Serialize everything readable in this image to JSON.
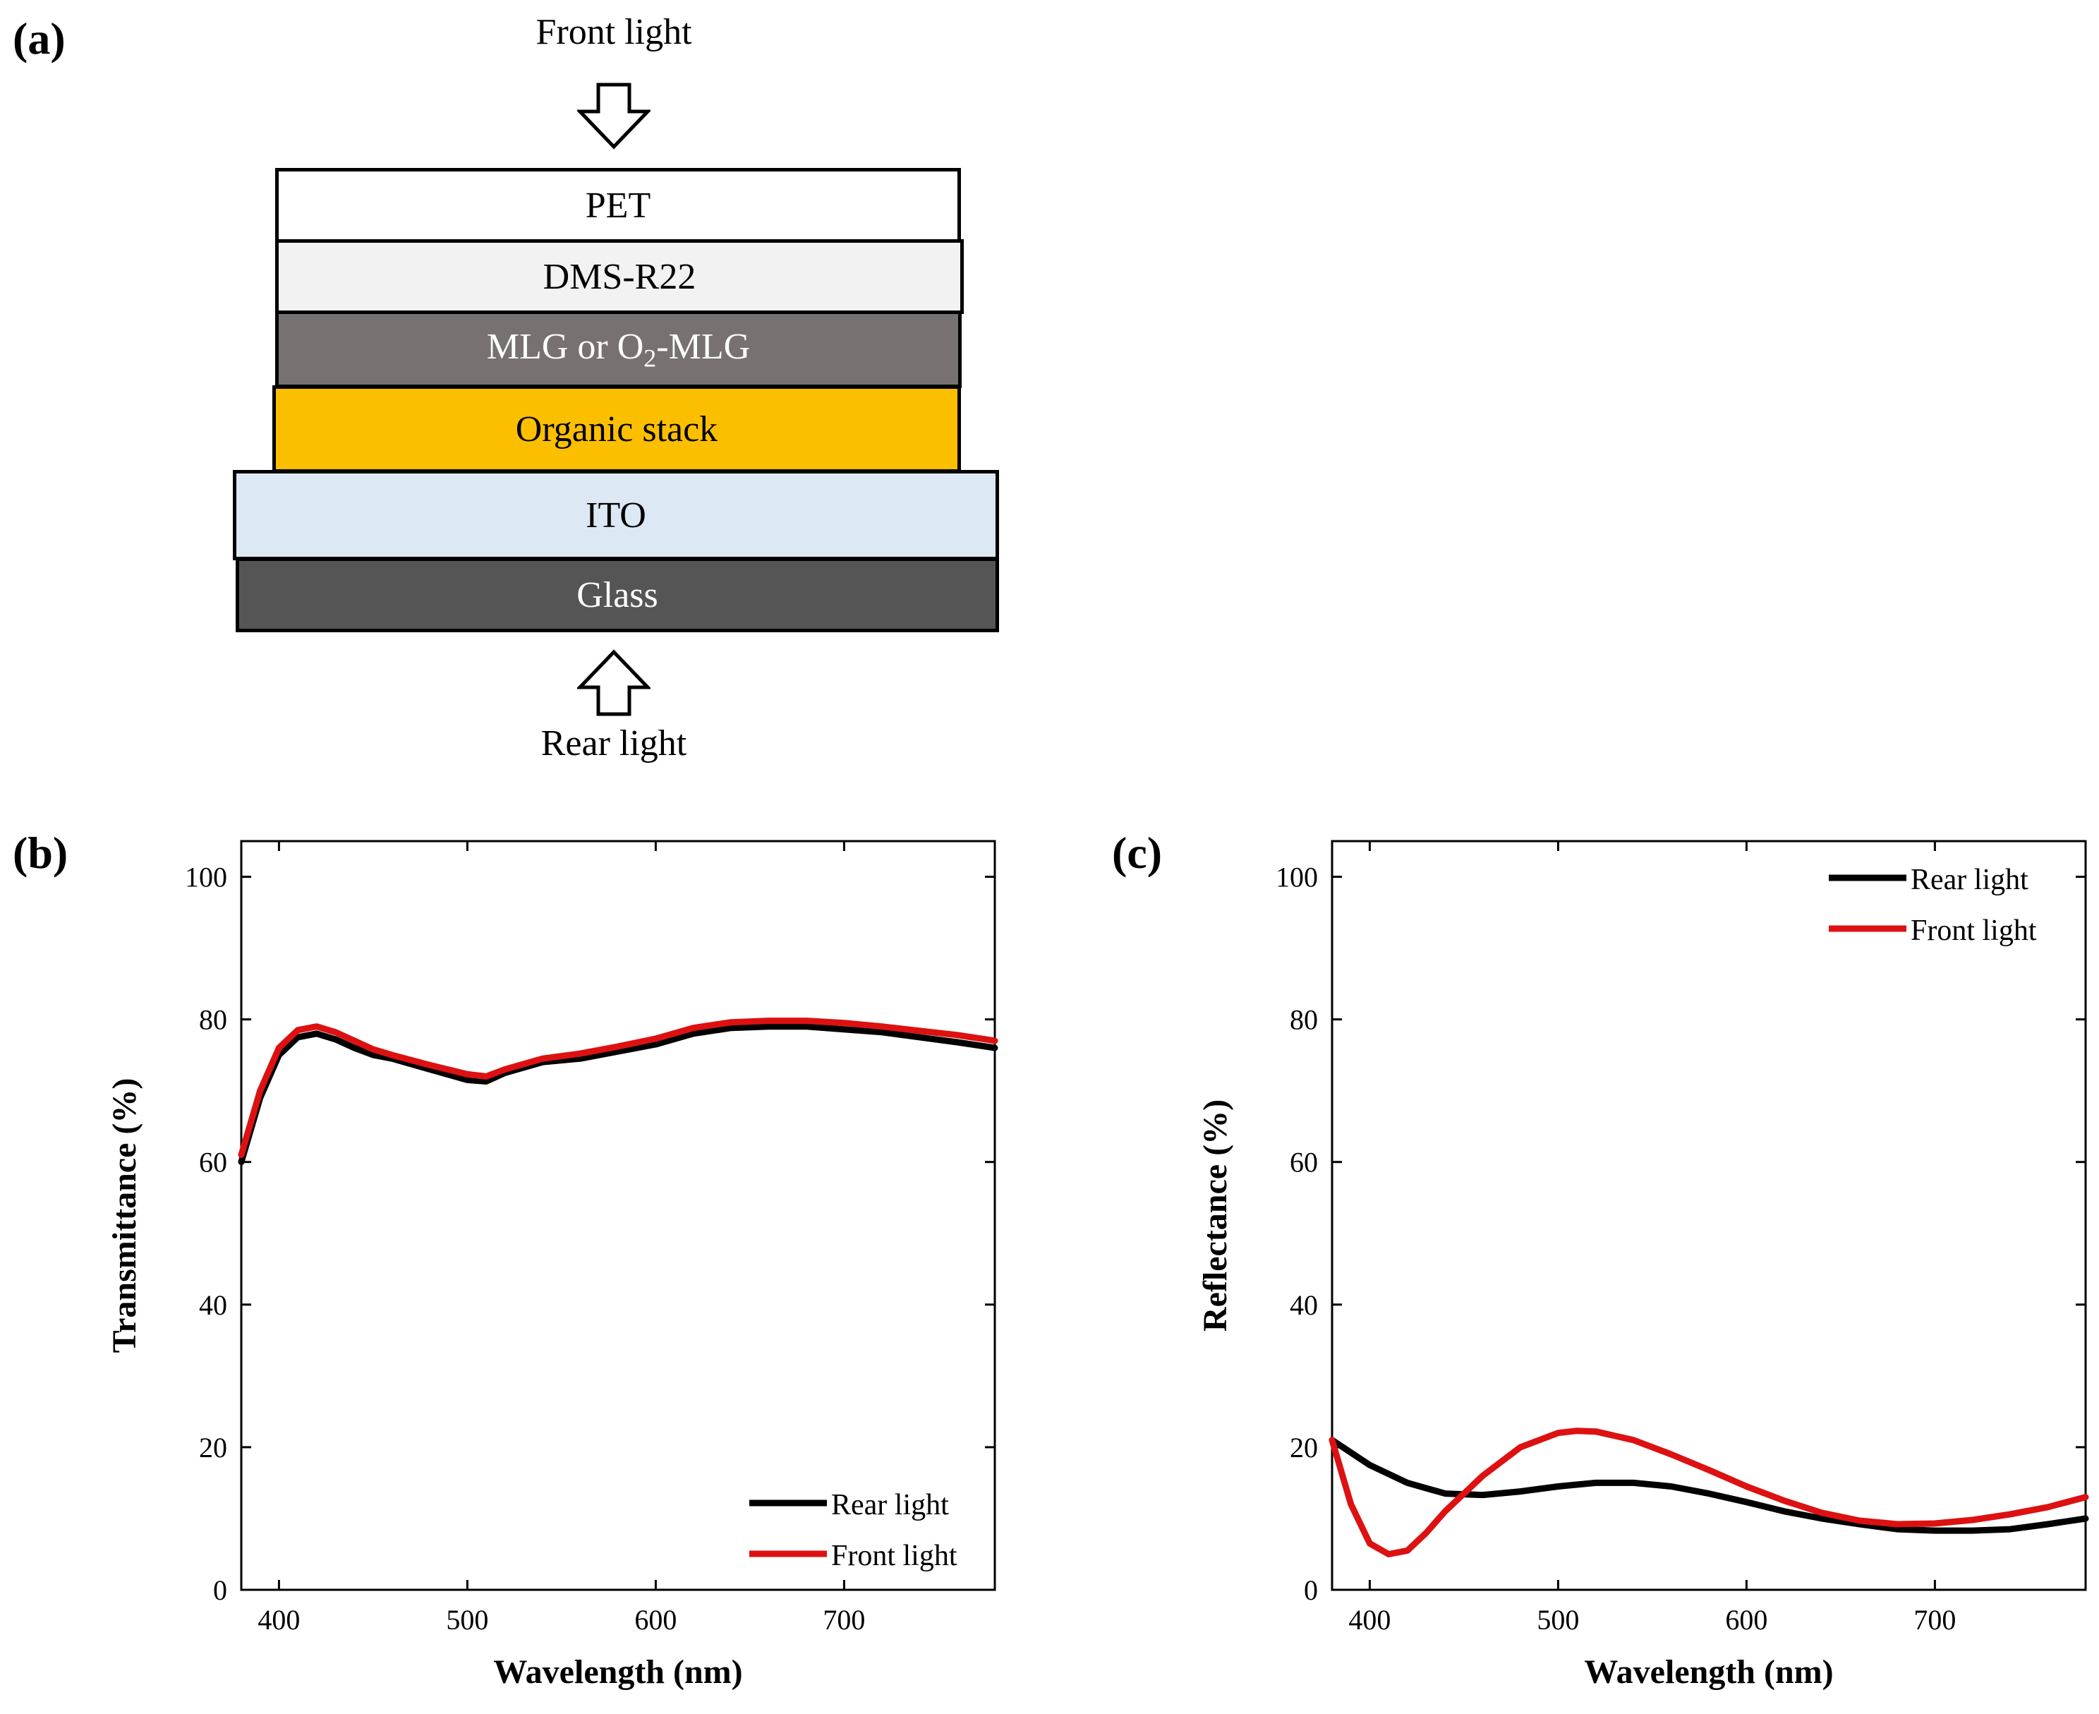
{
  "panels": {
    "a": "(a)",
    "b": "(b)",
    "c": "(c)"
  },
  "stack": {
    "front_light": "Front light",
    "rear_light": "Rear light",
    "layers": [
      {
        "name": "PET",
        "color": "#ffffff",
        "text_color": "#000000"
      },
      {
        "name": "DMS-R22",
        "color": "#f2f2f2",
        "text_color": "#000000"
      },
      {
        "name": "MLG or O2-MLG",
        "color": "#777171",
        "text_color": "#ffffff"
      },
      {
        "name": "Organic stack",
        "color": "#fcbf00",
        "text_color": "#000000"
      },
      {
        "name": "ITO",
        "color": "#dce9f4",
        "text_color": "#000000"
      },
      {
        "name": "Glass",
        "color": "#555555",
        "text_color": "#ffffff"
      }
    ],
    "mlg_parts": {
      "pre": "MLG or O",
      "sub": "2",
      "post": "-MLG"
    }
  },
  "chart_data": [
    {
      "type": "line",
      "xlabel": "Wavelength (nm)",
      "ylabel": "Transmittance (%)",
      "xlim": [
        380,
        780
      ],
      "ylim": [
        0,
        105
      ],
      "xticks": [
        400,
        500,
        600,
        700
      ],
      "yticks": [
        0,
        20,
        40,
        60,
        80,
        100
      ],
      "legend_position": "bottom-right",
      "series": [
        {
          "name": "Rear light",
          "color": "#000000",
          "x": [
            380,
            390,
            400,
            410,
            420,
            430,
            440,
            450,
            460,
            480,
            500,
            510,
            520,
            540,
            560,
            580,
            600,
            620,
            640,
            660,
            680,
            700,
            720,
            740,
            760,
            780
          ],
          "y": [
            60,
            69,
            75,
            77.5,
            78,
            77.2,
            76,
            75,
            74.5,
            73,
            71.5,
            71.3,
            72.5,
            74,
            74.5,
            75.5,
            76.5,
            78,
            78.8,
            79,
            79,
            78.6,
            78.2,
            77.5,
            76.8,
            76
          ]
        },
        {
          "name": "Front light",
          "color": "#dd1111",
          "x": [
            380,
            390,
            400,
            410,
            420,
            430,
            440,
            450,
            460,
            480,
            500,
            510,
            520,
            540,
            560,
            580,
            600,
            620,
            640,
            660,
            680,
            700,
            720,
            740,
            760,
            780
          ],
          "y": [
            61,
            70,
            76,
            78.5,
            79,
            78.2,
            77,
            75.8,
            75,
            73.6,
            72.3,
            72,
            73,
            74.5,
            75.2,
            76.2,
            77.3,
            78.8,
            79.6,
            79.8,
            79.8,
            79.5,
            79,
            78.4,
            77.8,
            77
          ]
        }
      ]
    },
    {
      "type": "line",
      "xlabel": "Wavelength (nm)",
      "ylabel": "Reflectance (%)",
      "xlim": [
        380,
        780
      ],
      "ylim": [
        0,
        105
      ],
      "xticks": [
        400,
        500,
        600,
        700
      ],
      "yticks": [
        0,
        20,
        40,
        60,
        80,
        100
      ],
      "legend_position": "top-right",
      "series": [
        {
          "name": "Rear light",
          "color": "#000000",
          "x": [
            380,
            400,
            420,
            440,
            460,
            480,
            500,
            520,
            540,
            560,
            580,
            600,
            620,
            640,
            660,
            680,
            700,
            720,
            740,
            760,
            780
          ],
          "y": [
            21,
            17.5,
            15,
            13.5,
            13.3,
            13.8,
            14.5,
            15,
            15,
            14.5,
            13.5,
            12.3,
            11,
            10,
            9.2,
            8.5,
            8.3,
            8.3,
            8.5,
            9.2,
            10
          ]
        },
        {
          "name": "Front light",
          "color": "#dd1111",
          "x": [
            380,
            390,
            400,
            410,
            420,
            430,
            440,
            450,
            460,
            480,
            500,
            510,
            520,
            540,
            560,
            580,
            600,
            620,
            640,
            660,
            680,
            700,
            720,
            740,
            760,
            780
          ],
          "y": [
            21,
            12,
            6.5,
            5,
            5.5,
            8,
            11,
            13.5,
            16,
            20,
            22,
            22.3,
            22.2,
            21,
            19,
            16.8,
            14.5,
            12.5,
            10.8,
            9.7,
            9.2,
            9.3,
            9.8,
            10.6,
            11.6,
            13
          ]
        }
      ]
    }
  ]
}
